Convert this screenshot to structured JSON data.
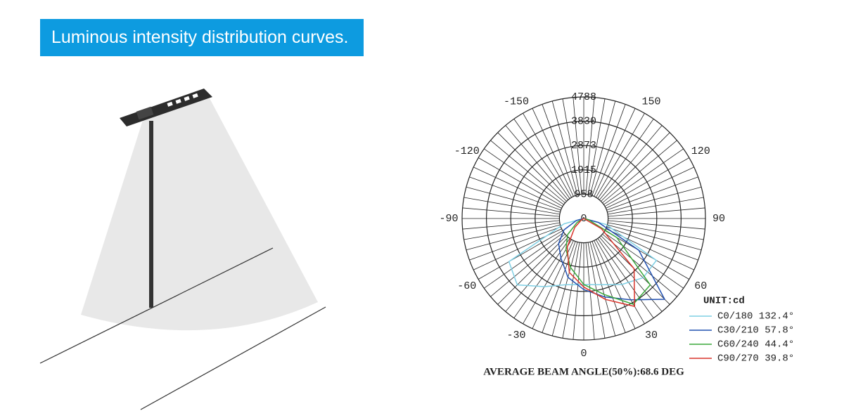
{
  "header": {
    "title": "Luminous intensity distribution curves."
  },
  "chart_data": {
    "type": "polar",
    "unit_label": "UNIT:cd",
    "footnote": "AVERAGE BEAM ANGLE(50%):68.6 DEG",
    "rlim": [
      0,
      4788
    ],
    "rticks": [
      0,
      958,
      1915,
      2873,
      3830,
      4788
    ],
    "thetaticks": [
      -150,
      150,
      -120,
      120,
      -90,
      90,
      -60,
      60,
      -30,
      30,
      0
    ],
    "angle_grid_step": 5,
    "x": [
      -90,
      -75,
      -60,
      -45,
      -30,
      -15,
      0,
      15,
      30,
      45,
      60,
      75,
      90
    ],
    "series": [
      {
        "name": "C0/180 132.4°",
        "color": "#7fcfe4",
        "values": [
          0,
          800,
          3400,
          3700,
          3100,
          2700,
          2600,
          2700,
          3000,
          3300,
          3300,
          900,
          0
        ]
      },
      {
        "name": "C30/210 57.8°",
        "color": "#2150b0",
        "values": [
          0,
          300,
          900,
          1400,
          1800,
          2400,
          2800,
          3200,
          3700,
          4500,
          2500,
          600,
          0
        ]
      },
      {
        "name": "C60/240 44.4°",
        "color": "#3aa83a",
        "values": [
          0,
          0,
          300,
          900,
          1400,
          2000,
          2600,
          3100,
          3900,
          3700,
          1500,
          200,
          0
        ]
      },
      {
        "name": "C90/270 39.8°",
        "color": "#d9342b",
        "values": [
          0,
          0,
          100,
          500,
          1300,
          2200,
          2700,
          3300,
          4000,
          2800,
          800,
          0,
          0
        ]
      }
    ]
  }
}
